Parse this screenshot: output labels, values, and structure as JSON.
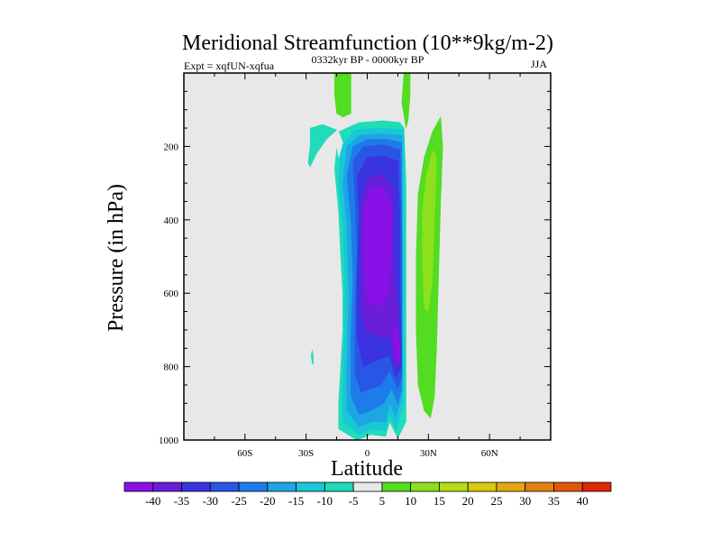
{
  "chart_data": {
    "type": "heatmap",
    "title": "Meridional Streamfunction (10**9kg/m-2)",
    "subtitle_left": "Expt = xqfUN-xqfua",
    "subtitle_center": "0332kyr BP - 0000kyr BP",
    "subtitle_right": "JJA",
    "xlabel": "Latitude",
    "ylabel": "Pressure (in hPa)",
    "xlim": [
      -90,
      90
    ],
    "ylim": [
      1000,
      0
    ],
    "x_ticks": [
      {
        "value": -60,
        "label": "60S"
      },
      {
        "value": -30,
        "label": "30S"
      },
      {
        "value": 0,
        "label": "0"
      },
      {
        "value": 30,
        "label": "30N"
      },
      {
        "value": 60,
        "label": "60N"
      }
    ],
    "y_ticks": [
      {
        "value": 200,
        "label": "200"
      },
      {
        "value": 400,
        "label": "400"
      },
      {
        "value": 600,
        "label": "600"
      },
      {
        "value": 800,
        "label": "800"
      },
      {
        "value": 1000,
        "label": "1000"
      }
    ],
    "background_color": "#e8e8e8",
    "colorbar": {
      "labels": [
        "-40",
        "-35",
        "-30",
        "-25",
        "-20",
        "-15",
        "-10",
        "-5",
        "5",
        "10",
        "15",
        "20",
        "25",
        "30",
        "35",
        "40"
      ],
      "colors": [
        "#8a10e8",
        "#6a1ed8",
        "#3a34e0",
        "#2a56e6",
        "#1e7cea",
        "#1ea6e4",
        "#18c8d6",
        "#20dcb8",
        "#e8e8e8",
        "#52dc22",
        "#8ce01c",
        "#b6dc14",
        "#d8c810",
        "#e2a810",
        "#e2800e",
        "#e2560c",
        "#e02808"
      ]
    },
    "contours": [
      {
        "name": "teal-outer-main",
        "level": "-5",
        "color": "#20dcb8",
        "points": [
          [
            -5,
            1000
          ],
          [
            -14,
            970
          ],
          [
            -14,
            900
          ],
          [
            -13,
            800
          ],
          [
            -12,
            700
          ],
          [
            -12,
            600
          ],
          [
            -13,
            500
          ],
          [
            -14,
            380
          ],
          [
            -16,
            260
          ],
          [
            -14,
            160
          ],
          [
            -4,
            135
          ],
          [
            8,
            130
          ],
          [
            16,
            135
          ],
          [
            18,
            150
          ],
          [
            19,
            300
          ],
          [
            19,
            500
          ],
          [
            19,
            650
          ],
          [
            19,
            820
          ],
          [
            19,
            950
          ],
          [
            15,
            995
          ],
          [
            11,
            950
          ],
          [
            9,
            990
          ],
          [
            2,
            985
          ]
        ]
      },
      {
        "name": "teal-left-blob",
        "level": "-5",
        "color": "#20dcb8",
        "points": [
          [
            -29,
            245
          ],
          [
            -28,
            200
          ],
          [
            -28,
            150
          ],
          [
            -22,
            140
          ],
          [
            -15,
            155
          ],
          [
            -20,
            180
          ],
          [
            -25,
            220
          ],
          [
            -28,
            255
          ]
        ]
      },
      {
        "name": "teal-small-speck",
        "level": "-5",
        "color": "#20dcb8",
        "points": [
          [
            -27,
            790
          ],
          [
            -27.5,
            770
          ],
          [
            -27,
            755
          ],
          [
            -26.5,
            770
          ],
          [
            -26.5,
            795
          ]
        ]
      },
      {
        "name": "cyan-region",
        "level": "-10",
        "color": "#18c8d6",
        "points": [
          [
            -4,
            985
          ],
          [
            -12,
            950
          ],
          [
            -12,
            820
          ],
          [
            -11,
            700
          ],
          [
            -11,
            550
          ],
          [
            -12,
            420
          ],
          [
            -14,
            300
          ],
          [
            -13,
            200
          ],
          [
            -6,
            155
          ],
          [
            6,
            150
          ],
          [
            18,
            155
          ],
          [
            18,
            400
          ],
          [
            18,
            650
          ],
          [
            18,
            900
          ],
          [
            14,
            975
          ],
          [
            11,
            930
          ],
          [
            9,
            975
          ],
          [
            2,
            970
          ]
        ]
      },
      {
        "name": "sky-region",
        "level": "-15",
        "color": "#1ea6e4",
        "points": [
          [
            -4,
            965
          ],
          [
            -10,
            920
          ],
          [
            -10,
            800
          ],
          [
            -9,
            600
          ],
          [
            -10,
            420
          ],
          [
            -12,
            300
          ],
          [
            -10,
            200
          ],
          [
            -4,
            170
          ],
          [
            6,
            165
          ],
          [
            17,
            170
          ],
          [
            17,
            400
          ],
          [
            17,
            650
          ],
          [
            17,
            880
          ],
          [
            14,
            940
          ],
          [
            11,
            900
          ],
          [
            9,
            950
          ],
          [
            2,
            950
          ]
        ]
      },
      {
        "name": "azure-region",
        "level": "-20",
        "color": "#1e7cea",
        "points": [
          [
            -4,
            930
          ],
          [
            -8,
            880
          ],
          [
            -8,
            720
          ],
          [
            -7,
            560
          ],
          [
            -8,
            400
          ],
          [
            -10,
            280
          ],
          [
            -7,
            200
          ],
          [
            0,
            180
          ],
          [
            10,
            180
          ],
          [
            17,
            190
          ],
          [
            17,
            450
          ],
          [
            17,
            700
          ],
          [
            17,
            860
          ],
          [
            15,
            900
          ],
          [
            12,
            860
          ],
          [
            8,
            900
          ],
          [
            2,
            920
          ]
        ]
      },
      {
        "name": "blue-region",
        "level": "-25",
        "color": "#2a56e6",
        "points": [
          [
            -3,
            870
          ],
          [
            -6,
            820
          ],
          [
            -6,
            640
          ],
          [
            -5,
            480
          ],
          [
            -6,
            340
          ],
          [
            -7,
            240
          ],
          [
            -2,
            200
          ],
          [
            8,
            195
          ],
          [
            16,
            210
          ],
          [
            17,
            450
          ],
          [
            17,
            700
          ],
          [
            17,
            830
          ],
          [
            15,
            860
          ],
          [
            11,
            810
          ],
          [
            7,
            850
          ],
          [
            2,
            860
          ]
        ]
      },
      {
        "name": "indigo-region",
        "level": "-30",
        "color": "#3a34e0",
        "points": [
          [
            -2,
            800
          ],
          [
            -5,
            720
          ],
          [
            -5,
            560
          ],
          [
            -4,
            400
          ],
          [
            -5,
            280
          ],
          [
            0,
            230
          ],
          [
            8,
            225
          ],
          [
            15,
            240
          ],
          [
            16,
            400
          ],
          [
            16,
            600
          ],
          [
            17,
            800
          ],
          [
            14,
            830
          ],
          [
            11,
            770
          ],
          [
            6,
            780
          ],
          [
            2,
            790
          ]
        ]
      },
      {
        "name": "deep-indigo-region",
        "level": "-35",
        "color": "#6a1ed8",
        "points": [
          [
            -1,
            700
          ],
          [
            -3,
            640
          ],
          [
            -3,
            500
          ],
          [
            -3,
            360
          ],
          [
            0,
            290
          ],
          [
            7,
            275
          ],
          [
            13,
            320
          ],
          [
            13,
            500
          ],
          [
            15,
            650
          ],
          [
            16,
            800
          ],
          [
            13,
            790
          ],
          [
            11,
            720
          ],
          [
            6,
            720
          ],
          [
            2,
            710
          ]
        ]
      },
      {
        "name": "violet-core-region",
        "level": "-40",
        "color": "#8a10e8",
        "points": [
          [
            0,
            620
          ],
          [
            -2,
            500
          ],
          [
            -2,
            380
          ],
          [
            1,
            320
          ],
          [
            7,
            310
          ],
          [
            12,
            360
          ],
          [
            12,
            500
          ],
          [
            10,
            600
          ],
          [
            6,
            640
          ],
          [
            3,
            630
          ]
        ]
      },
      {
        "name": "violet-lower-lobe",
        "level": "-40",
        "color": "#8a10e8",
        "points": [
          [
            14,
            680
          ],
          [
            13,
            730
          ],
          [
            14,
            780
          ],
          [
            16,
            790
          ],
          [
            16,
            740
          ],
          [
            15,
            690
          ]
        ]
      },
      {
        "name": "white-gap-upper-left",
        "level": "5",
        "color": "#e8e8e8",
        "points": [
          [
            -17,
            170
          ],
          [
            -14,
            160
          ],
          [
            -12,
            190
          ],
          [
            -14,
            230
          ],
          [
            -15,
            200
          ]
        ]
      },
      {
        "name": "green-top-left",
        "level": "10",
        "color": "#52dc22",
        "points": [
          [
            -16,
            0
          ],
          [
            -16,
            60
          ],
          [
            -15,
            110
          ],
          [
            -12,
            120
          ],
          [
            -8,
            110
          ],
          [
            -8,
            60
          ],
          [
            -8,
            0
          ]
        ]
      },
      {
        "name": "green-top-right",
        "level": "10",
        "color": "#52dc22",
        "points": [
          [
            18,
            0
          ],
          [
            17,
            80
          ],
          [
            19,
            150
          ],
          [
            20,
            130
          ],
          [
            21,
            60
          ],
          [
            21,
            0
          ]
        ]
      },
      {
        "name": "green-right-band",
        "level": "10",
        "color": "#52dc22",
        "points": [
          [
            28,
            920
          ],
          [
            25,
            850
          ],
          [
            24,
            700
          ],
          [
            24,
            500
          ],
          [
            25,
            330
          ],
          [
            28,
            230
          ],
          [
            32,
            160
          ],
          [
            36,
            120
          ],
          [
            37,
            200
          ],
          [
            36,
            350
          ],
          [
            35,
            550
          ],
          [
            34,
            750
          ],
          [
            33,
            880
          ],
          [
            31,
            940
          ]
        ]
      },
      {
        "name": "yellowgreen-right-core",
        "level": "15",
        "color": "#8ce01c",
        "points": [
          [
            28,
            640
          ],
          [
            27,
            500
          ],
          [
            27,
            380
          ],
          [
            29,
            280
          ],
          [
            32,
            210
          ],
          [
            34,
            230
          ],
          [
            33,
            400
          ],
          [
            32,
            560
          ],
          [
            30,
            650
          ]
        ]
      }
    ]
  }
}
